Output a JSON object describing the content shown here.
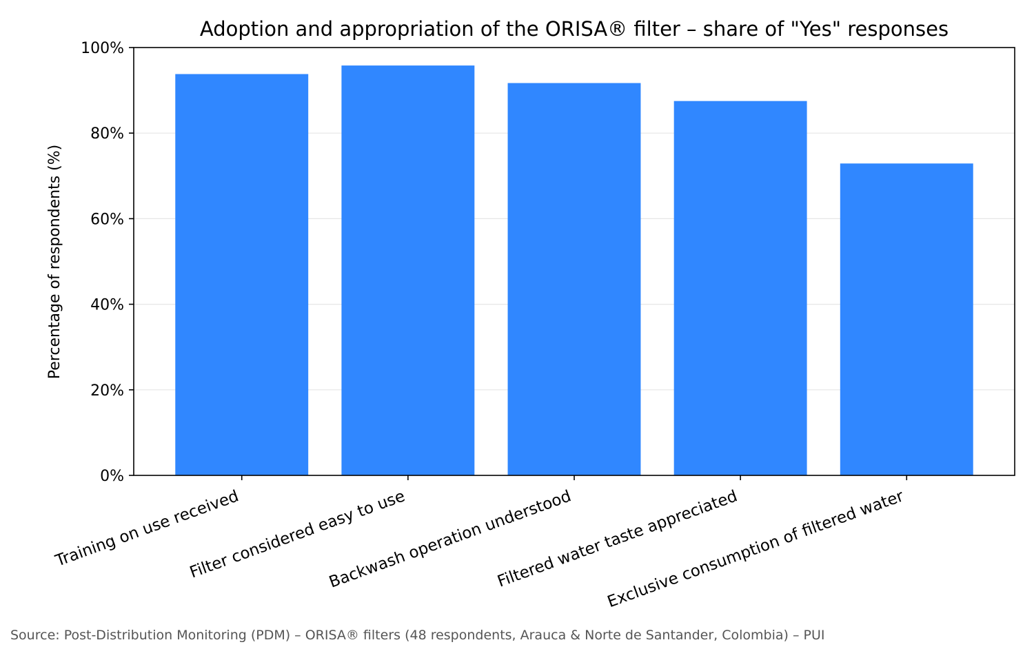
{
  "chart_data": {
    "type": "bar",
    "title": "Adoption and appropriation of the ORISA® filter – share of \"Yes\" responses",
    "xlabel": "",
    "ylabel": "Percentage of respondents (%)",
    "categories": [
      "Training on use received",
      "Filter considered easy to use",
      "Backwash operation understood",
      "Filtered water taste appreciated",
      "Exclusive consumption of filtered water"
    ],
    "values": [
      93.8,
      95.8,
      91.7,
      87.5,
      72.9
    ],
    "ylim": [
      0,
      100
    ],
    "yticks": [
      0,
      20,
      40,
      60,
      80,
      100
    ],
    "ytick_labels": [
      "0%",
      "20%",
      "40%",
      "60%",
      "80%",
      "100%"
    ],
    "bar_color": "#3087ff",
    "grid": "horizontal",
    "source": "Source: Post-Distribution Monitoring (PDM) – ORISA® filters (48 respondents, Arauca & Norte de Santander, Colombia) – PUI"
  }
}
